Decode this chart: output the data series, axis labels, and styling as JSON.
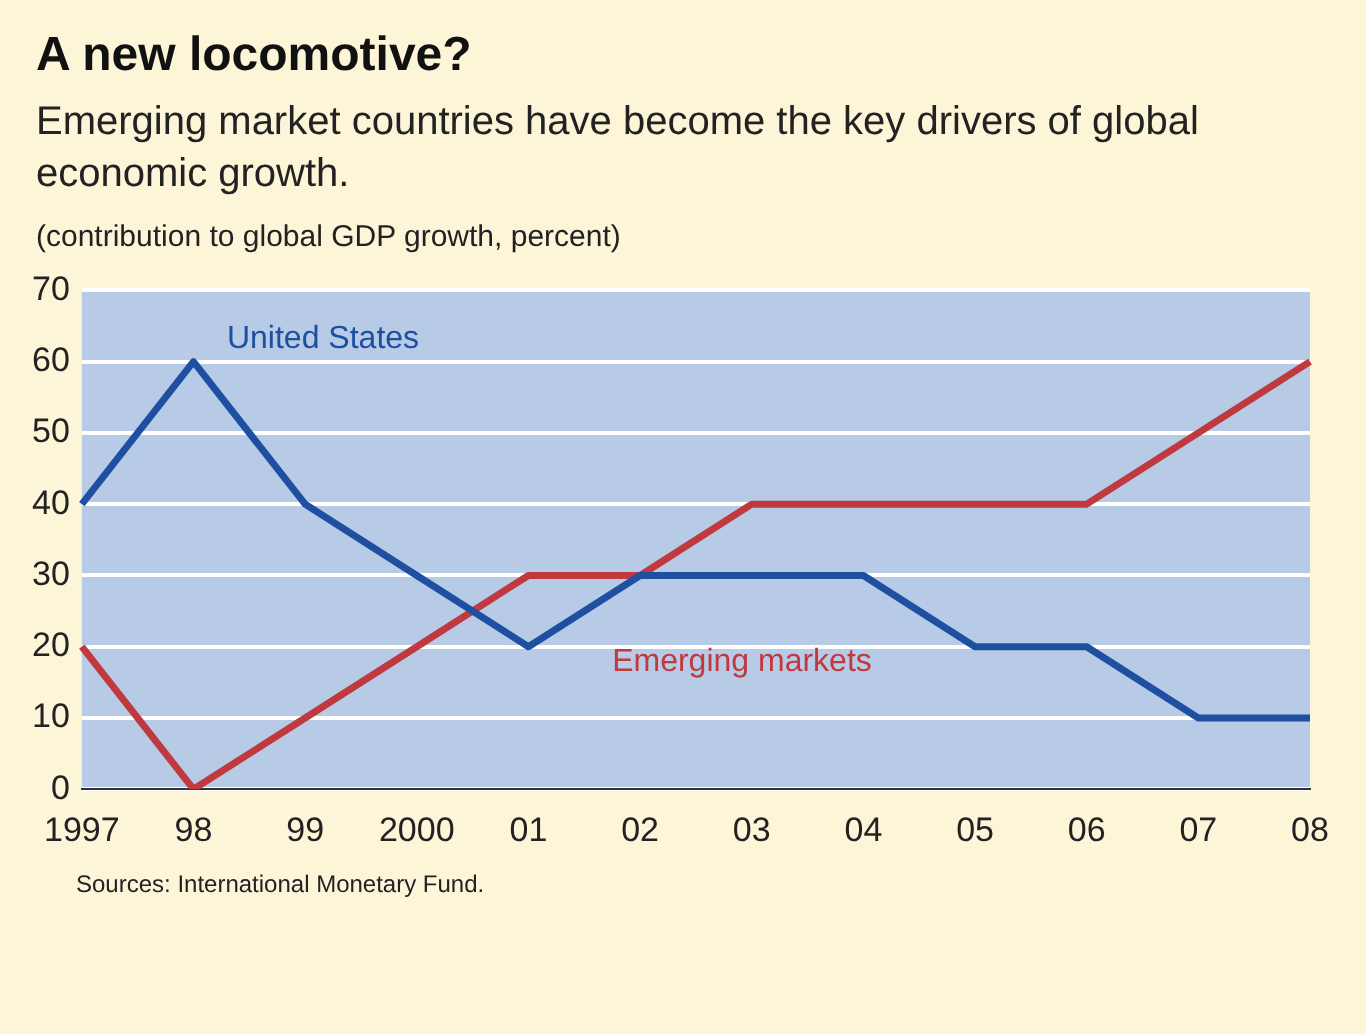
{
  "chart_data": {
    "type": "line",
    "title": "A new locomotive?",
    "subtitle": "Emerging market countries have become the key drivers of global economic growth.",
    "ylabel": "(contribution to global GDP growth, percent)",
    "categories": [
      "1997",
      "98",
      "99",
      "2000",
      "01",
      "02",
      "03",
      "04",
      "05",
      "06",
      "07",
      "08"
    ],
    "series": [
      {
        "name": "United States",
        "color": "#1f4fa0",
        "values": [
          40,
          60,
          40,
          30,
          20,
          30,
          30,
          30,
          20,
          20,
          10,
          10
        ]
      },
      {
        "name": "Emerging markets",
        "color": "#c0393f",
        "values": [
          20,
          0,
          10,
          20,
          30,
          30,
          40,
          40,
          40,
          40,
          50,
          60
        ]
      }
    ],
    "ylim": [
      0,
      70
    ],
    "yticks": [
      0,
      10,
      20,
      30,
      40,
      50,
      60,
      70
    ],
    "grid": "y",
    "legend": false,
    "marker": "none",
    "line_style": "solid",
    "annotations": [
      "Sources: International Monetary Fund."
    ]
  }
}
